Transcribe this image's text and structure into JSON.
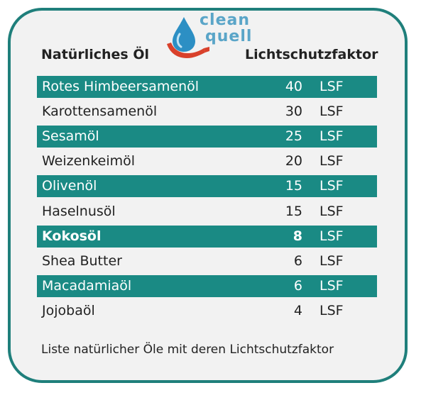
{
  "logo": {
    "line1": "clean",
    "line2": "quell"
  },
  "header": {
    "name_label": "Natürliches Öl",
    "lsf_label": "Lichtschutzfaktor"
  },
  "rows": [
    {
      "name": "Rotes Himbeersamenöl",
      "value": "40",
      "unit": "LSF",
      "highlight": true,
      "bold": false
    },
    {
      "name": "Karottensamenöl",
      "value": "30",
      "unit": "LSF",
      "highlight": false,
      "bold": false
    },
    {
      "name": "Sesamöl",
      "value": "25",
      "unit": "LSF",
      "highlight": true,
      "bold": false
    },
    {
      "name": "Weizenkeimöl",
      "value": "20",
      "unit": "LSF",
      "highlight": false,
      "bold": false
    },
    {
      "name": "Olivenöl",
      "value": "15",
      "unit": "LSF",
      "highlight": true,
      "bold": false
    },
    {
      "name": "Haselnusöl",
      "value": "15",
      "unit": "LSF",
      "highlight": false,
      "bold": false
    },
    {
      "name": "Kokosöl",
      "value": "8",
      "unit": "LSF",
      "highlight": true,
      "bold": true
    },
    {
      "name": "Shea Butter",
      "value": "6",
      "unit": "LSF",
      "highlight": false,
      "bold": false
    },
    {
      "name": "Macadamiaöl",
      "value": "6",
      "unit": "LSF",
      "highlight": true,
      "bold": false
    },
    {
      "name": "Jojobaöl",
      "value": "4",
      "unit": "LSF",
      "highlight": false,
      "bold": false
    }
  ],
  "caption": "Liste natürlicher Öle mit deren Lichtschutzfaktor",
  "colors": {
    "teal": "#1a8a84",
    "border": "#1f7f7b",
    "background": "#f2f2f2",
    "logo_text": "#5aa5c8",
    "logo_hand": "#d9412b",
    "logo_drop": "#2c8fc4"
  }
}
